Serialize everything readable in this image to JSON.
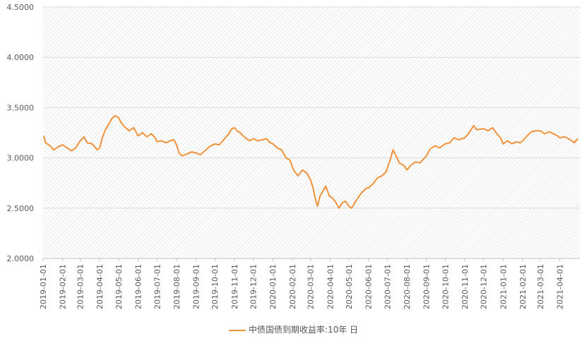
{
  "chart_data": {
    "type": "line",
    "title": "",
    "xlabel": "",
    "ylabel": "",
    "ylim": [
      2.0,
      4.5
    ],
    "yticks": [
      "2.0000",
      "2.5000",
      "3.0000",
      "3.5000",
      "4.0000",
      "4.5000"
    ],
    "xticks": [
      "2019-01-01",
      "2019-02-01",
      "2019-03-01",
      "2019-04-01",
      "2019-05-01",
      "2019-06-01",
      "2019-07-01",
      "2019-08-01",
      "2019-09-01",
      "2019-10-01",
      "2019-11-01",
      "2019-12-01",
      "2020-01-01",
      "2020-02-01",
      "2020-03-01",
      "2020-04-01",
      "2020-05-01",
      "2020-06-01",
      "2020-07-01",
      "2020-08-01",
      "2020-09-01",
      "2020-10-01",
      "2020-11-01",
      "2020-12-01",
      "2021-01-01",
      "2021-02-01",
      "2021-03-01",
      "2021-04-01"
    ],
    "grid": "diagonal-hatch background",
    "legend_position": "bottom",
    "series": [
      {
        "name": "中债国债到期收益率:10年 日",
        "color": "#f0923b",
        "points": [
          [
            "2019-01-02",
            3.22
          ],
          [
            "2019-01-05",
            3.15
          ],
          [
            "2019-01-12",
            3.12
          ],
          [
            "2019-01-18",
            3.08
          ],
          [
            "2019-01-25",
            3.11
          ],
          [
            "2019-02-01",
            3.13
          ],
          [
            "2019-02-08",
            3.1
          ],
          [
            "2019-02-15",
            3.07
          ],
          [
            "2019-02-22",
            3.1
          ],
          [
            "2019-03-01",
            3.17
          ],
          [
            "2019-03-07",
            3.21
          ],
          [
            "2019-03-12",
            3.15
          ],
          [
            "2019-03-20",
            3.14
          ],
          [
            "2019-03-28",
            3.08
          ],
          [
            "2019-04-01",
            3.1
          ],
          [
            "2019-04-05",
            3.2
          ],
          [
            "2019-04-10",
            3.28
          ],
          [
            "2019-04-15",
            3.33
          ],
          [
            "2019-04-20",
            3.39
          ],
          [
            "2019-04-25",
            3.42
          ],
          [
            "2019-05-01",
            3.4
          ],
          [
            "2019-05-05",
            3.35
          ],
          [
            "2019-05-12",
            3.3
          ],
          [
            "2019-05-18",
            3.27
          ],
          [
            "2019-05-25",
            3.3
          ],
          [
            "2019-06-01",
            3.22
          ],
          [
            "2019-06-08",
            3.25
          ],
          [
            "2019-06-15",
            3.21
          ],
          [
            "2019-06-22",
            3.24
          ],
          [
            "2019-06-28",
            3.2
          ],
          [
            "2019-07-01",
            3.16
          ],
          [
            "2019-07-08",
            3.17
          ],
          [
            "2019-07-15",
            3.15
          ],
          [
            "2019-07-22",
            3.17
          ],
          [
            "2019-07-28",
            3.18
          ],
          [
            "2019-08-01",
            3.13
          ],
          [
            "2019-08-05",
            3.05
          ],
          [
            "2019-08-10",
            3.02
          ],
          [
            "2019-08-18",
            3.04
          ],
          [
            "2019-08-25",
            3.06
          ],
          [
            "2019-09-01",
            3.05
          ],
          [
            "2019-09-08",
            3.03
          ],
          [
            "2019-09-15",
            3.07
          ],
          [
            "2019-09-22",
            3.11
          ],
          [
            "2019-10-01",
            3.14
          ],
          [
            "2019-10-08",
            3.13
          ],
          [
            "2019-10-15",
            3.18
          ],
          [
            "2019-10-22",
            3.23
          ],
          [
            "2019-10-28",
            3.29
          ],
          [
            "2019-11-01",
            3.3
          ],
          [
            "2019-11-05",
            3.27
          ],
          [
            "2019-11-10",
            3.25
          ],
          [
            "2019-11-18",
            3.2
          ],
          [
            "2019-11-25",
            3.17
          ],
          [
            "2019-12-01",
            3.19
          ],
          [
            "2019-12-08",
            3.17
          ],
          [
            "2019-12-15",
            3.18
          ],
          [
            "2019-12-22",
            3.19
          ],
          [
            "2019-12-28",
            3.15
          ],
          [
            "2020-01-01",
            3.14
          ],
          [
            "2020-01-08",
            3.1
          ],
          [
            "2020-01-15",
            3.08
          ],
          [
            "2020-01-22",
            3.0
          ],
          [
            "2020-01-28",
            2.98
          ],
          [
            "2020-02-03",
            2.88
          ],
          [
            "2020-02-10",
            2.82
          ],
          [
            "2020-02-17",
            2.88
          ],
          [
            "2020-02-24",
            2.85
          ],
          [
            "2020-03-01",
            2.78
          ],
          [
            "2020-03-05",
            2.7
          ],
          [
            "2020-03-09",
            2.58
          ],
          [
            "2020-03-12",
            2.52
          ],
          [
            "2020-03-16",
            2.62
          ],
          [
            "2020-03-20",
            2.66
          ],
          [
            "2020-03-25",
            2.72
          ],
          [
            "2020-03-31",
            2.62
          ],
          [
            "2020-04-05",
            2.6
          ],
          [
            "2020-04-10",
            2.56
          ],
          [
            "2020-04-15",
            2.5
          ],
          [
            "2020-04-20",
            2.55
          ],
          [
            "2020-04-25",
            2.57
          ],
          [
            "2020-05-01",
            2.52
          ],
          [
            "2020-05-05",
            2.5
          ],
          [
            "2020-05-10",
            2.55
          ],
          [
            "2020-05-15",
            2.6
          ],
          [
            "2020-05-22",
            2.66
          ],
          [
            "2020-05-29",
            2.7
          ],
          [
            "2020-06-01",
            2.7
          ],
          [
            "2020-06-08",
            2.74
          ],
          [
            "2020-06-15",
            2.8
          ],
          [
            "2020-06-22",
            2.82
          ],
          [
            "2020-06-29",
            2.86
          ],
          [
            "2020-07-01",
            2.9
          ],
          [
            "2020-07-05",
            2.97
          ],
          [
            "2020-07-10",
            3.08
          ],
          [
            "2020-07-15",
            3.02
          ],
          [
            "2020-07-20",
            2.95
          ],
          [
            "2020-07-28",
            2.92
          ],
          [
            "2020-08-01",
            2.88
          ],
          [
            "2020-08-08",
            2.93
          ],
          [
            "2020-08-15",
            2.96
          ],
          [
            "2020-08-22",
            2.95
          ],
          [
            "2020-09-01",
            3.02
          ],
          [
            "2020-09-07",
            3.09
          ],
          [
            "2020-09-15",
            3.12
          ],
          [
            "2020-09-22",
            3.1
          ],
          [
            "2020-10-01",
            3.14
          ],
          [
            "2020-10-08",
            3.15
          ],
          [
            "2020-10-15",
            3.2
          ],
          [
            "2020-10-22",
            3.18
          ],
          [
            "2020-11-01",
            3.2
          ],
          [
            "2020-11-08",
            3.25
          ],
          [
            "2020-11-15",
            3.32
          ],
          [
            "2020-11-20",
            3.28
          ],
          [
            "2020-12-01",
            3.29
          ],
          [
            "2020-12-08",
            3.27
          ],
          [
            "2020-12-15",
            3.3
          ],
          [
            "2020-12-22",
            3.24
          ],
          [
            "2020-12-28",
            3.2
          ],
          [
            "2021-01-01",
            3.14
          ],
          [
            "2021-01-08",
            3.17
          ],
          [
            "2021-01-15",
            3.14
          ],
          [
            "2021-01-22",
            3.16
          ],
          [
            "2021-01-28",
            3.15
          ],
          [
            "2021-02-01",
            3.17
          ],
          [
            "2021-02-08",
            3.22
          ],
          [
            "2021-02-15",
            3.26
          ],
          [
            "2021-02-22",
            3.27
          ],
          [
            "2021-03-01",
            3.27
          ],
          [
            "2021-03-08",
            3.24
          ],
          [
            "2021-03-15",
            3.26
          ],
          [
            "2021-03-22",
            3.24
          ],
          [
            "2021-03-28",
            3.22
          ],
          [
            "2021-04-01",
            3.2
          ],
          [
            "2021-04-08",
            3.21
          ],
          [
            "2021-04-15",
            3.19
          ],
          [
            "2021-04-20",
            3.17
          ],
          [
            "2021-04-24",
            3.15
          ],
          [
            "2021-04-28",
            3.18
          ],
          [
            "2021-04-30",
            3.19
          ]
        ]
      }
    ]
  }
}
